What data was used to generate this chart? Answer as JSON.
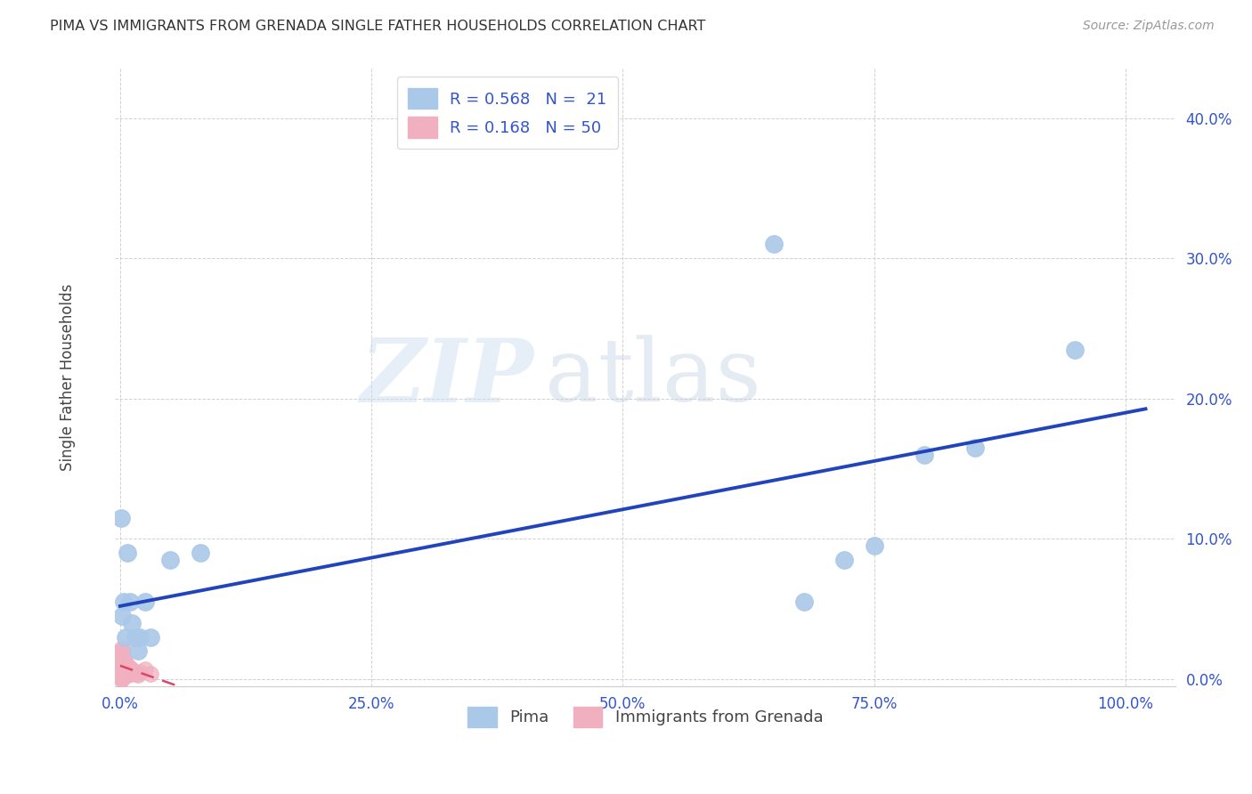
{
  "title": "PIMA VS IMMIGRANTS FROM GRENADA SINGLE FATHER HOUSEHOLDS CORRELATION CHART",
  "source": "Source: ZipAtlas.com",
  "ylabel": "Single Father Households",
  "xlim": [
    -0.005,
    1.05
  ],
  "ylim": [
    -0.005,
    0.435
  ],
  "xticks": [
    0.0,
    0.25,
    0.5,
    0.75,
    1.0
  ],
  "yticks": [
    0.0,
    0.1,
    0.2,
    0.3,
    0.4
  ],
  "blue_color": "#aac8e8",
  "pink_color": "#f0b0c0",
  "line_blue": "#2244bb",
  "line_pink": "#dd4466",
  "pima_x": [
    0.001,
    0.002,
    0.004,
    0.005,
    0.007,
    0.01,
    0.012,
    0.015,
    0.018,
    0.02,
    0.025,
    0.03,
    0.05,
    0.08,
    0.65,
    0.68,
    0.72,
    0.75,
    0.8,
    0.85,
    0.95
  ],
  "pima_y": [
    0.115,
    0.045,
    0.055,
    0.03,
    0.09,
    0.055,
    0.04,
    0.03,
    0.02,
    0.03,
    0.055,
    0.03,
    0.085,
    0.09,
    0.31,
    0.055,
    0.085,
    0.095,
    0.16,
    0.165,
    0.235
  ],
  "grenada_x": [
    0.001,
    0.001,
    0.001,
    0.001,
    0.001,
    0.001,
    0.001,
    0.001,
    0.001,
    0.001,
    0.001,
    0.002,
    0.002,
    0.002,
    0.002,
    0.002,
    0.002,
    0.002,
    0.002,
    0.002,
    0.002,
    0.002,
    0.003,
    0.003,
    0.003,
    0.003,
    0.003,
    0.004,
    0.004,
    0.004,
    0.004,
    0.005,
    0.005,
    0.005,
    0.006,
    0.006,
    0.007,
    0.007,
    0.008,
    0.008,
    0.009,
    0.01,
    0.01,
    0.012,
    0.014,
    0.016,
    0.018,
    0.02,
    0.025,
    0.03
  ],
  "grenada_y": [
    0.0,
    0.002,
    0.003,
    0.005,
    0.007,
    0.008,
    0.01,
    0.012,
    0.015,
    0.018,
    0.02,
    0.0,
    0.002,
    0.004,
    0.006,
    0.008,
    0.01,
    0.012,
    0.015,
    0.017,
    0.02,
    0.022,
    0.002,
    0.005,
    0.008,
    0.012,
    0.015,
    0.003,
    0.006,
    0.01,
    0.015,
    0.004,
    0.008,
    0.012,
    0.005,
    0.01,
    0.004,
    0.008,
    0.003,
    0.007,
    0.005,
    0.004,
    0.008,
    0.006,
    0.005,
    0.004,
    0.003,
    0.005,
    0.007,
    0.004
  ]
}
